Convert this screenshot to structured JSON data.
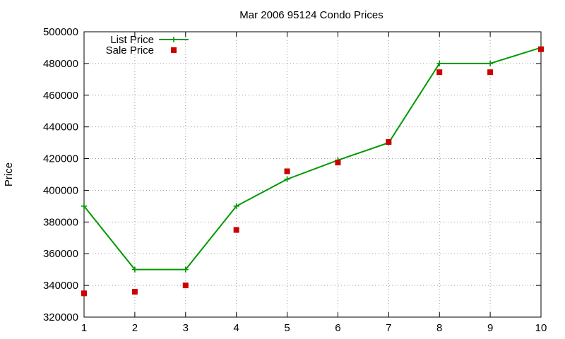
{
  "chart_data": {
    "type": "line",
    "title": "Mar 2006 95124 Condo Prices",
    "xlabel": "",
    "ylabel": "Price",
    "x": [
      1,
      2,
      3,
      4,
      5,
      6,
      7,
      8,
      9,
      10
    ],
    "xlim": [
      1,
      10
    ],
    "ylim": [
      320000,
      500000
    ],
    "x_ticks": [
      1,
      2,
      3,
      4,
      5,
      6,
      7,
      8,
      9,
      10
    ],
    "y_ticks": [
      320000,
      340000,
      360000,
      380000,
      400000,
      420000,
      440000,
      460000,
      480000,
      500000
    ],
    "grid": true,
    "legend_position": "top-left",
    "series": [
      {
        "name": "List Price",
        "kind": "line",
        "marker": "plus",
        "color": "#009900",
        "values": [
          390000,
          350000,
          350000,
          390000,
          407000,
          419000,
          430000,
          480000,
          480000,
          490000
        ]
      },
      {
        "name": "Sale Price",
        "kind": "points",
        "marker": "square",
        "color": "#cc0000",
        "values": [
          335000,
          336000,
          340000,
          375000,
          412000,
          417500,
          430500,
          474500,
          474500,
          489000
        ]
      }
    ]
  }
}
